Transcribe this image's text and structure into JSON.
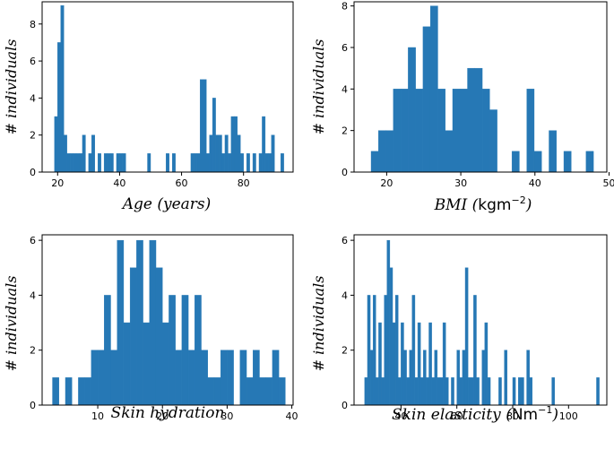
{
  "colors": {
    "bar": "#2678b5"
  },
  "chart_data": [
    {
      "type": "bar",
      "title": "",
      "xlabel": "Age (years)",
      "xlabel_unit": "",
      "ylabel": "# individuals",
      "xlim": [
        15,
        96
      ],
      "ylim": [
        0,
        9.2
      ],
      "xticks": [
        20,
        40,
        60,
        80
      ],
      "yticks": [
        0,
        2,
        4,
        6,
        8
      ],
      "bin_width": 1,
      "bins": [
        {
          "x": 19,
          "v": 3
        },
        {
          "x": 20,
          "v": 7
        },
        {
          "x": 21,
          "v": 9
        },
        {
          "x": 22,
          "v": 2
        },
        {
          "x": 23,
          "v": 1
        },
        {
          "x": 24,
          "v": 1
        },
        {
          "x": 25,
          "v": 1
        },
        {
          "x": 26,
          "v": 1
        },
        {
          "x": 27,
          "v": 1
        },
        {
          "x": 28,
          "v": 2
        },
        {
          "x": 30,
          "v": 1
        },
        {
          "x": 31,
          "v": 2
        },
        {
          "x": 33,
          "v": 1
        },
        {
          "x": 35,
          "v": 1
        },
        {
          "x": 36,
          "v": 1
        },
        {
          "x": 37,
          "v": 1
        },
        {
          "x": 39,
          "v": 1
        },
        {
          "x": 40,
          "v": 1
        },
        {
          "x": 41,
          "v": 1
        },
        {
          "x": 49,
          "v": 1
        },
        {
          "x": 55,
          "v": 1
        },
        {
          "x": 57,
          "v": 1
        },
        {
          "x": 63,
          "v": 1
        },
        {
          "x": 64,
          "v": 1
        },
        {
          "x": 65,
          "v": 1
        },
        {
          "x": 66,
          "v": 5
        },
        {
          "x": 67,
          "v": 5
        },
        {
          "x": 68,
          "v": 1
        },
        {
          "x": 69,
          "v": 2
        },
        {
          "x": 70,
          "v": 4
        },
        {
          "x": 71,
          "v": 2
        },
        {
          "x": 72,
          "v": 2
        },
        {
          "x": 73,
          "v": 1
        },
        {
          "x": 74,
          "v": 2
        },
        {
          "x": 75,
          "v": 1
        },
        {
          "x": 76,
          "v": 3
        },
        {
          "x": 77,
          "v": 3
        },
        {
          "x": 78,
          "v": 2
        },
        {
          "x": 79,
          "v": 1
        },
        {
          "x": 81,
          "v": 1
        },
        {
          "x": 83,
          "v": 1
        },
        {
          "x": 85,
          "v": 1
        },
        {
          "x": 86,
          "v": 3
        },
        {
          "x": 87,
          "v": 1
        },
        {
          "x": 88,
          "v": 1
        },
        {
          "x": 89,
          "v": 2
        },
        {
          "x": 92,
          "v": 1
        }
      ]
    },
    {
      "type": "bar",
      "title": "",
      "xlabel": "BMI (",
      "xlabel_unit": "kgm",
      "xlabel_sup": "−2",
      "xlabel_end": ")",
      "ylabel": "# individuals",
      "xlim": [
        15.6,
        49.7
      ],
      "ylim": [
        0,
        8.2
      ],
      "xticks": [
        20,
        30,
        40,
        50
      ],
      "yticks": [
        0,
        2,
        4,
        6,
        8
      ],
      "bin_width": 1.0,
      "bins": [
        {
          "x": 17.9,
          "v": 1
        },
        {
          "x": 18.9,
          "v": 2
        },
        {
          "x": 19.9,
          "v": 2
        },
        {
          "x": 20.9,
          "v": 4
        },
        {
          "x": 21.9,
          "v": 4
        },
        {
          "x": 22.9,
          "v": 6
        },
        {
          "x": 23.9,
          "v": 4
        },
        {
          "x": 24.9,
          "v": 7
        },
        {
          "x": 25.9,
          "v": 8
        },
        {
          "x": 26.9,
          "v": 4
        },
        {
          "x": 27.9,
          "v": 2
        },
        {
          "x": 28.9,
          "v": 4
        },
        {
          "x": 29.9,
          "v": 4
        },
        {
          "x": 30.9,
          "v": 5
        },
        {
          "x": 31.9,
          "v": 5
        },
        {
          "x": 32.9,
          "v": 4
        },
        {
          "x": 33.9,
          "v": 3
        },
        {
          "x": 36.9,
          "v": 1
        },
        {
          "x": 38.9,
          "v": 4
        },
        {
          "x": 39.9,
          "v": 1
        },
        {
          "x": 41.9,
          "v": 2
        },
        {
          "x": 43.9,
          "v": 1
        },
        {
          "x": 46.9,
          "v": 1
        }
      ]
    },
    {
      "type": "bar",
      "title": "",
      "xlabel": "Skin hydration",
      "xlabel_unit": "",
      "ylabel": "# individuals",
      "xlim": [
        1.4,
        40.2
      ],
      "ylim": [
        0,
        6.2
      ],
      "xticks": [
        10,
        20,
        30,
        40
      ],
      "yticks": [
        0,
        2,
        4,
        6
      ],
      "bin_width": 1.0,
      "bins": [
        {
          "x": 3,
          "v": 1
        },
        {
          "x": 5,
          "v": 1
        },
        {
          "x": 7,
          "v": 1
        },
        {
          "x": 8,
          "v": 1
        },
        {
          "x": 9,
          "v": 2
        },
        {
          "x": 10,
          "v": 2
        },
        {
          "x": 11,
          "v": 4
        },
        {
          "x": 12,
          "v": 2
        },
        {
          "x": 13,
          "v": 6
        },
        {
          "x": 14,
          "v": 3
        },
        {
          "x": 15,
          "v": 5
        },
        {
          "x": 16,
          "v": 6
        },
        {
          "x": 17,
          "v": 3
        },
        {
          "x": 18,
          "v": 6
        },
        {
          "x": 19,
          "v": 5
        },
        {
          "x": 20,
          "v": 3
        },
        {
          "x": 21,
          "v": 4
        },
        {
          "x": 22,
          "v": 2
        },
        {
          "x": 23,
          "v": 4
        },
        {
          "x": 24,
          "v": 2
        },
        {
          "x": 25,
          "v": 4
        },
        {
          "x": 26,
          "v": 2
        },
        {
          "x": 27,
          "v": 1
        },
        {
          "x": 28,
          "v": 1
        },
        {
          "x": 29,
          "v": 2
        },
        {
          "x": 30,
          "v": 2
        },
        {
          "x": 32,
          "v": 2
        },
        {
          "x": 33,
          "v": 1
        },
        {
          "x": 34,
          "v": 2
        },
        {
          "x": 35,
          "v": 1
        },
        {
          "x": 36,
          "v": 1
        },
        {
          "x": 37,
          "v": 2
        },
        {
          "x": 38,
          "v": 1
        }
      ]
    },
    {
      "type": "bar",
      "title": "",
      "xlabel": "Skin elasticity (",
      "xlabel_unit": "Nm",
      "xlabel_sup": "−1",
      "xlabel_end": ")",
      "ylabel": "# individuals",
      "xlim": [
        23.2,
        113.7
      ],
      "ylim": [
        0,
        6.2
      ],
      "xticks": [
        40,
        60,
        80,
        100
      ],
      "yticks": [
        0,
        2,
        4,
        6
      ],
      "bin_width": 1.0,
      "bins": [
        {
          "x": 27,
          "v": 1
        },
        {
          "x": 28,
          "v": 4
        },
        {
          "x": 29,
          "v": 2
        },
        {
          "x": 30,
          "v": 4
        },
        {
          "x": 31,
          "v": 1
        },
        {
          "x": 32,
          "v": 3
        },
        {
          "x": 33,
          "v": 1
        },
        {
          "x": 34,
          "v": 4
        },
        {
          "x": 35,
          "v": 6
        },
        {
          "x": 36,
          "v": 5
        },
        {
          "x": 37,
          "v": 3
        },
        {
          "x": 38,
          "v": 4
        },
        {
          "x": 39,
          "v": 1
        },
        {
          "x": 40,
          "v": 3
        },
        {
          "x": 41,
          "v": 2
        },
        {
          "x": 42,
          "v": 1
        },
        {
          "x": 43,
          "v": 2
        },
        {
          "x": 44,
          "v": 4
        },
        {
          "x": 45,
          "v": 1
        },
        {
          "x": 46,
          "v": 3
        },
        {
          "x": 47,
          "v": 1
        },
        {
          "x": 48,
          "v": 2
        },
        {
          "x": 49,
          "v": 1
        },
        {
          "x": 50,
          "v": 3
        },
        {
          "x": 51,
          "v": 1
        },
        {
          "x": 52,
          "v": 2
        },
        {
          "x": 53,
          "v": 1
        },
        {
          "x": 54,
          "v": 1
        },
        {
          "x": 55,
          "v": 3
        },
        {
          "x": 56,
          "v": 1
        },
        {
          "x": 58,
          "v": 1
        },
        {
          "x": 60,
          "v": 2
        },
        {
          "x": 61,
          "v": 1
        },
        {
          "x": 62,
          "v": 2
        },
        {
          "x": 63,
          "v": 5
        },
        {
          "x": 64,
          "v": 1
        },
        {
          "x": 65,
          "v": 1
        },
        {
          "x": 66,
          "v": 4
        },
        {
          "x": 67,
          "v": 1
        },
        {
          "x": 69,
          "v": 2
        },
        {
          "x": 70,
          "v": 3
        },
        {
          "x": 71,
          "v": 1
        },
        {
          "x": 75,
          "v": 1
        },
        {
          "x": 77,
          "v": 2
        },
        {
          "x": 80,
          "v": 1
        },
        {
          "x": 82,
          "v": 1
        },
        {
          "x": 83,
          "v": 1
        },
        {
          "x": 85,
          "v": 2
        },
        {
          "x": 86,
          "v": 1
        },
        {
          "x": 94,
          "v": 1
        },
        {
          "x": 110,
          "v": 1
        }
      ]
    }
  ]
}
